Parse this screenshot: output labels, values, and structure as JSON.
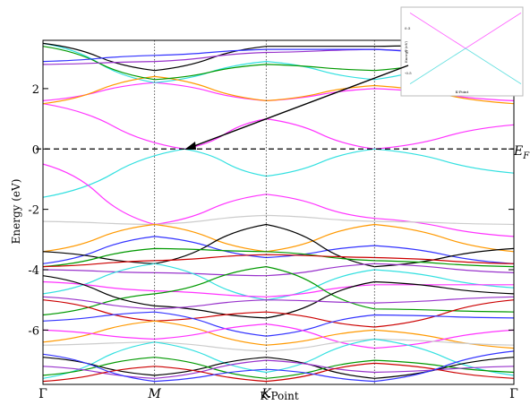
{
  "chart_data": {
    "type": "line",
    "ylabel": "Energy (eV)",
    "xlabel": "K-Point",
    "fermi_label_main": "E",
    "fermi_label_sub": "F",
    "ylim": [
      -7.8,
      3.6
    ],
    "yticks": [
      {
        "value": 2,
        "label": "2"
      },
      {
        "value": 0,
        "label": "0"
      },
      {
        "value": -2,
        "label": "-2"
      },
      {
        "value": -4,
        "label": "-4"
      },
      {
        "value": -6,
        "label": "-6"
      }
    ],
    "xlim": [
      0,
      1
    ],
    "high_symmetry_points": [
      {
        "name": "Γ",
        "x": 0
      },
      {
        "name": "M",
        "x": 0.237
      },
      {
        "name": "K",
        "x": 0.474
      },
      {
        "name": "",
        "x": 0.704
      },
      {
        "name": "Γ",
        "x": 1
      }
    ],
    "fermi_level": 0,
    "dirac_point": {
      "x": 0.3,
      "y": 0
    },
    "grid": false,
    "series": [
      {
        "color": "#ff33ff",
        "x": [
          0,
          0.3,
          0.474,
          0.704,
          1
        ],
        "y": [
          1.5,
          0,
          1.0,
          0,
          0.8
        ]
      },
      {
        "color": "#33e0e0",
        "x": [
          0,
          0.3,
          0.474,
          0.704,
          1
        ],
        "y": [
          -1.6,
          0,
          -0.9,
          0,
          -0.8
        ]
      },
      {
        "color": "#ff33ff",
        "x": [
          0,
          0.237,
          0.474,
          0.704,
          1
        ],
        "y": [
          1.6,
          2.2,
          1.6,
          2.0,
          1.6
        ]
      },
      {
        "color": "#ff33ff",
        "x": [
          0,
          0.237,
          0.474,
          0.704,
          1
        ],
        "y": [
          -0.5,
          -2.5,
          -1.5,
          -2.3,
          -2.9
        ]
      },
      {
        "color": "#33e0e0",
        "x": [
          0,
          0.237,
          0.474,
          0.704,
          1
        ],
        "y": [
          3.5,
          2.2,
          2.9,
          2.3,
          3.5
        ]
      },
      {
        "color": "#ff9900",
        "x": [
          0,
          0.237,
          0.474,
          0.704,
          1
        ],
        "y": [
          1.5,
          2.4,
          1.6,
          2.1,
          1.5
        ]
      },
      {
        "color": "#009900",
        "x": [
          0,
          0.237,
          0.474,
          0.704,
          1
        ],
        "y": [
          3.4,
          2.3,
          2.8,
          2.6,
          3.3
        ]
      },
      {
        "color": "#000000",
        "x": [
          0,
          0.237,
          0.474,
          0.704,
          1
        ],
        "y": [
          3.5,
          2.6,
          3.4,
          3.4,
          3.5
        ]
      },
      {
        "color": "#9933cc",
        "x": [
          0,
          0.237,
          0.474,
          0.704,
          1
        ],
        "y": [
          2.8,
          2.9,
          3.2,
          3.3,
          3.0
        ]
      },
      {
        "color": "#3333ff",
        "x": [
          0,
          0.237,
          0.474,
          0.704,
          1
        ],
        "y": [
          2.9,
          3.1,
          3.3,
          3.3,
          2.9
        ]
      },
      {
        "color": "#cccccc",
        "x": [
          0,
          0.237,
          0.474,
          0.704,
          1
        ],
        "y": [
          -2.4,
          -2.5,
          -2.2,
          -2.4,
          -2.5
        ]
      },
      {
        "color": "#ff9900",
        "x": [
          0,
          0.237,
          0.474,
          0.704,
          1
        ],
        "y": [
          -3.4,
          -2.5,
          -3.4,
          -2.5,
          -3.4
        ]
      },
      {
        "color": "#3333ff",
        "x": [
          0,
          0.237,
          0.474,
          0.704,
          1
        ],
        "y": [
          -3.8,
          -2.9,
          -3.6,
          -3.2,
          -3.8
        ]
      },
      {
        "color": "#000000",
        "x": [
          0,
          0.237,
          0.474,
          0.704,
          1
        ],
        "y": [
          -3.4,
          -3.8,
          -2.5,
          -3.9,
          -3.3
        ]
      },
      {
        "color": "#009900",
        "x": [
          0,
          0.237,
          0.474,
          0.704,
          1
        ],
        "y": [
          -3.9,
          -3.3,
          -3.4,
          -3.7,
          -3.9
        ]
      },
      {
        "color": "#cc0000",
        "x": [
          0,
          0.237,
          0.474,
          0.704,
          1
        ],
        "y": [
          -3.9,
          -3.7,
          -3.5,
          -3.6,
          -3.8
        ]
      },
      {
        "color": "#9933cc",
        "x": [
          0,
          0.237,
          0.474,
          0.704,
          1
        ],
        "y": [
          -4.0,
          -4.1,
          -4.2,
          -3.8,
          -4.1
        ]
      },
      {
        "color": "#33e0e0",
        "x": [
          0,
          0.237,
          0.474,
          0.704,
          1
        ],
        "y": [
          -4.8,
          -3.8,
          -5.0,
          -4.0,
          -4.6
        ]
      },
      {
        "color": "#ff33ff",
        "x": [
          0,
          0.237,
          0.474,
          0.704,
          1
        ],
        "y": [
          -4.4,
          -4.7,
          -4.9,
          -4.5,
          -4.5
        ]
      },
      {
        "color": "#009900",
        "x": [
          0,
          0.237,
          0.474,
          0.704,
          1
        ],
        "y": [
          -5.5,
          -4.8,
          -3.9,
          -5.3,
          -5.4
        ]
      },
      {
        "color": "#000000",
        "x": [
          0,
          0.237,
          0.474,
          0.704,
          1
        ],
        "y": [
          -4.2,
          -5.2,
          -5.6,
          -4.4,
          -4.8
        ]
      },
      {
        "color": "#9933cc",
        "x": [
          0,
          0.237,
          0.474,
          0.704,
          1
        ],
        "y": [
          -4.9,
          -5.3,
          -5.0,
          -5.1,
          -4.9
        ]
      },
      {
        "color": "#cc0000",
        "x": [
          0,
          0.237,
          0.474,
          0.704,
          1
        ],
        "y": [
          -5.0,
          -5.7,
          -5.4,
          -5.9,
          -5.0
        ]
      },
      {
        "color": "#3333ff",
        "x": [
          0,
          0.237,
          0.474,
          0.704,
          1
        ],
        "y": [
          -5.7,
          -5.4,
          -6.2,
          -5.5,
          -5.6
        ]
      },
      {
        "color": "#ff9900",
        "x": [
          0,
          0.237,
          0.474,
          0.704,
          1
        ],
        "y": [
          -6.4,
          -5.7,
          -6.5,
          -6.0,
          -6.6
        ]
      },
      {
        "color": "#ff33ff",
        "x": [
          0,
          0.237,
          0.474,
          0.704,
          1
        ],
        "y": [
          -6.0,
          -6.3,
          -5.8,
          -6.6,
          -6.0
        ]
      },
      {
        "color": "#cccccc",
        "x": [
          0,
          0.237,
          0.474,
          0.704,
          1
        ],
        "y": [
          -6.5,
          -6.4,
          -6.7,
          -6.3,
          -6.5
        ]
      },
      {
        "color": "#33e0e0",
        "x": [
          0,
          0.237,
          0.474,
          0.704,
          1
        ],
        "y": [
          -7.6,
          -6.4,
          -7.4,
          -6.3,
          -7.5
        ]
      },
      {
        "color": "#000000",
        "x": [
          0,
          0.237,
          0.474,
          0.704,
          1
        ],
        "y": [
          -6.9,
          -7.5,
          -6.9,
          -7.6,
          -6.9
        ]
      },
      {
        "color": "#009900",
        "x": [
          0,
          0.237,
          0.474,
          0.704,
          1
        ],
        "y": [
          -7.5,
          -6.9,
          -7.6,
          -7.0,
          -7.4
        ]
      },
      {
        "color": "#9933cc",
        "x": [
          0,
          0.237,
          0.474,
          0.704,
          1
        ],
        "y": [
          -7.2,
          -7.6,
          -7.0,
          -7.4,
          -7.2
        ]
      },
      {
        "color": "#cc0000",
        "x": [
          0,
          0.237,
          0.474,
          0.704,
          1
        ],
        "y": [
          -7.7,
          -7.2,
          -7.7,
          -7.1,
          -7.6
        ]
      },
      {
        "color": "#3333ff",
        "x": [
          0,
          0.237,
          0.474,
          0.704,
          1
        ],
        "y": [
          -6.8,
          -7.7,
          -7.3,
          -7.7,
          -6.7
        ]
      }
    ],
    "inset": {
      "xlabel": "K-Point",
      "ylabel": "Energy (eV)",
      "yticks": [
        "0.5",
        "0",
        "-0.5"
      ],
      "series": [
        {
          "color": "#ff66ff",
          "x": [
            0,
            0.5,
            1
          ],
          "y": [
            0.9,
            0,
            0.9
          ]
        },
        {
          "color": "#66e0e0",
          "x": [
            0,
            0.5,
            1
          ],
          "y": [
            -0.9,
            0,
            -0.9
          ]
        }
      ]
    }
  }
}
